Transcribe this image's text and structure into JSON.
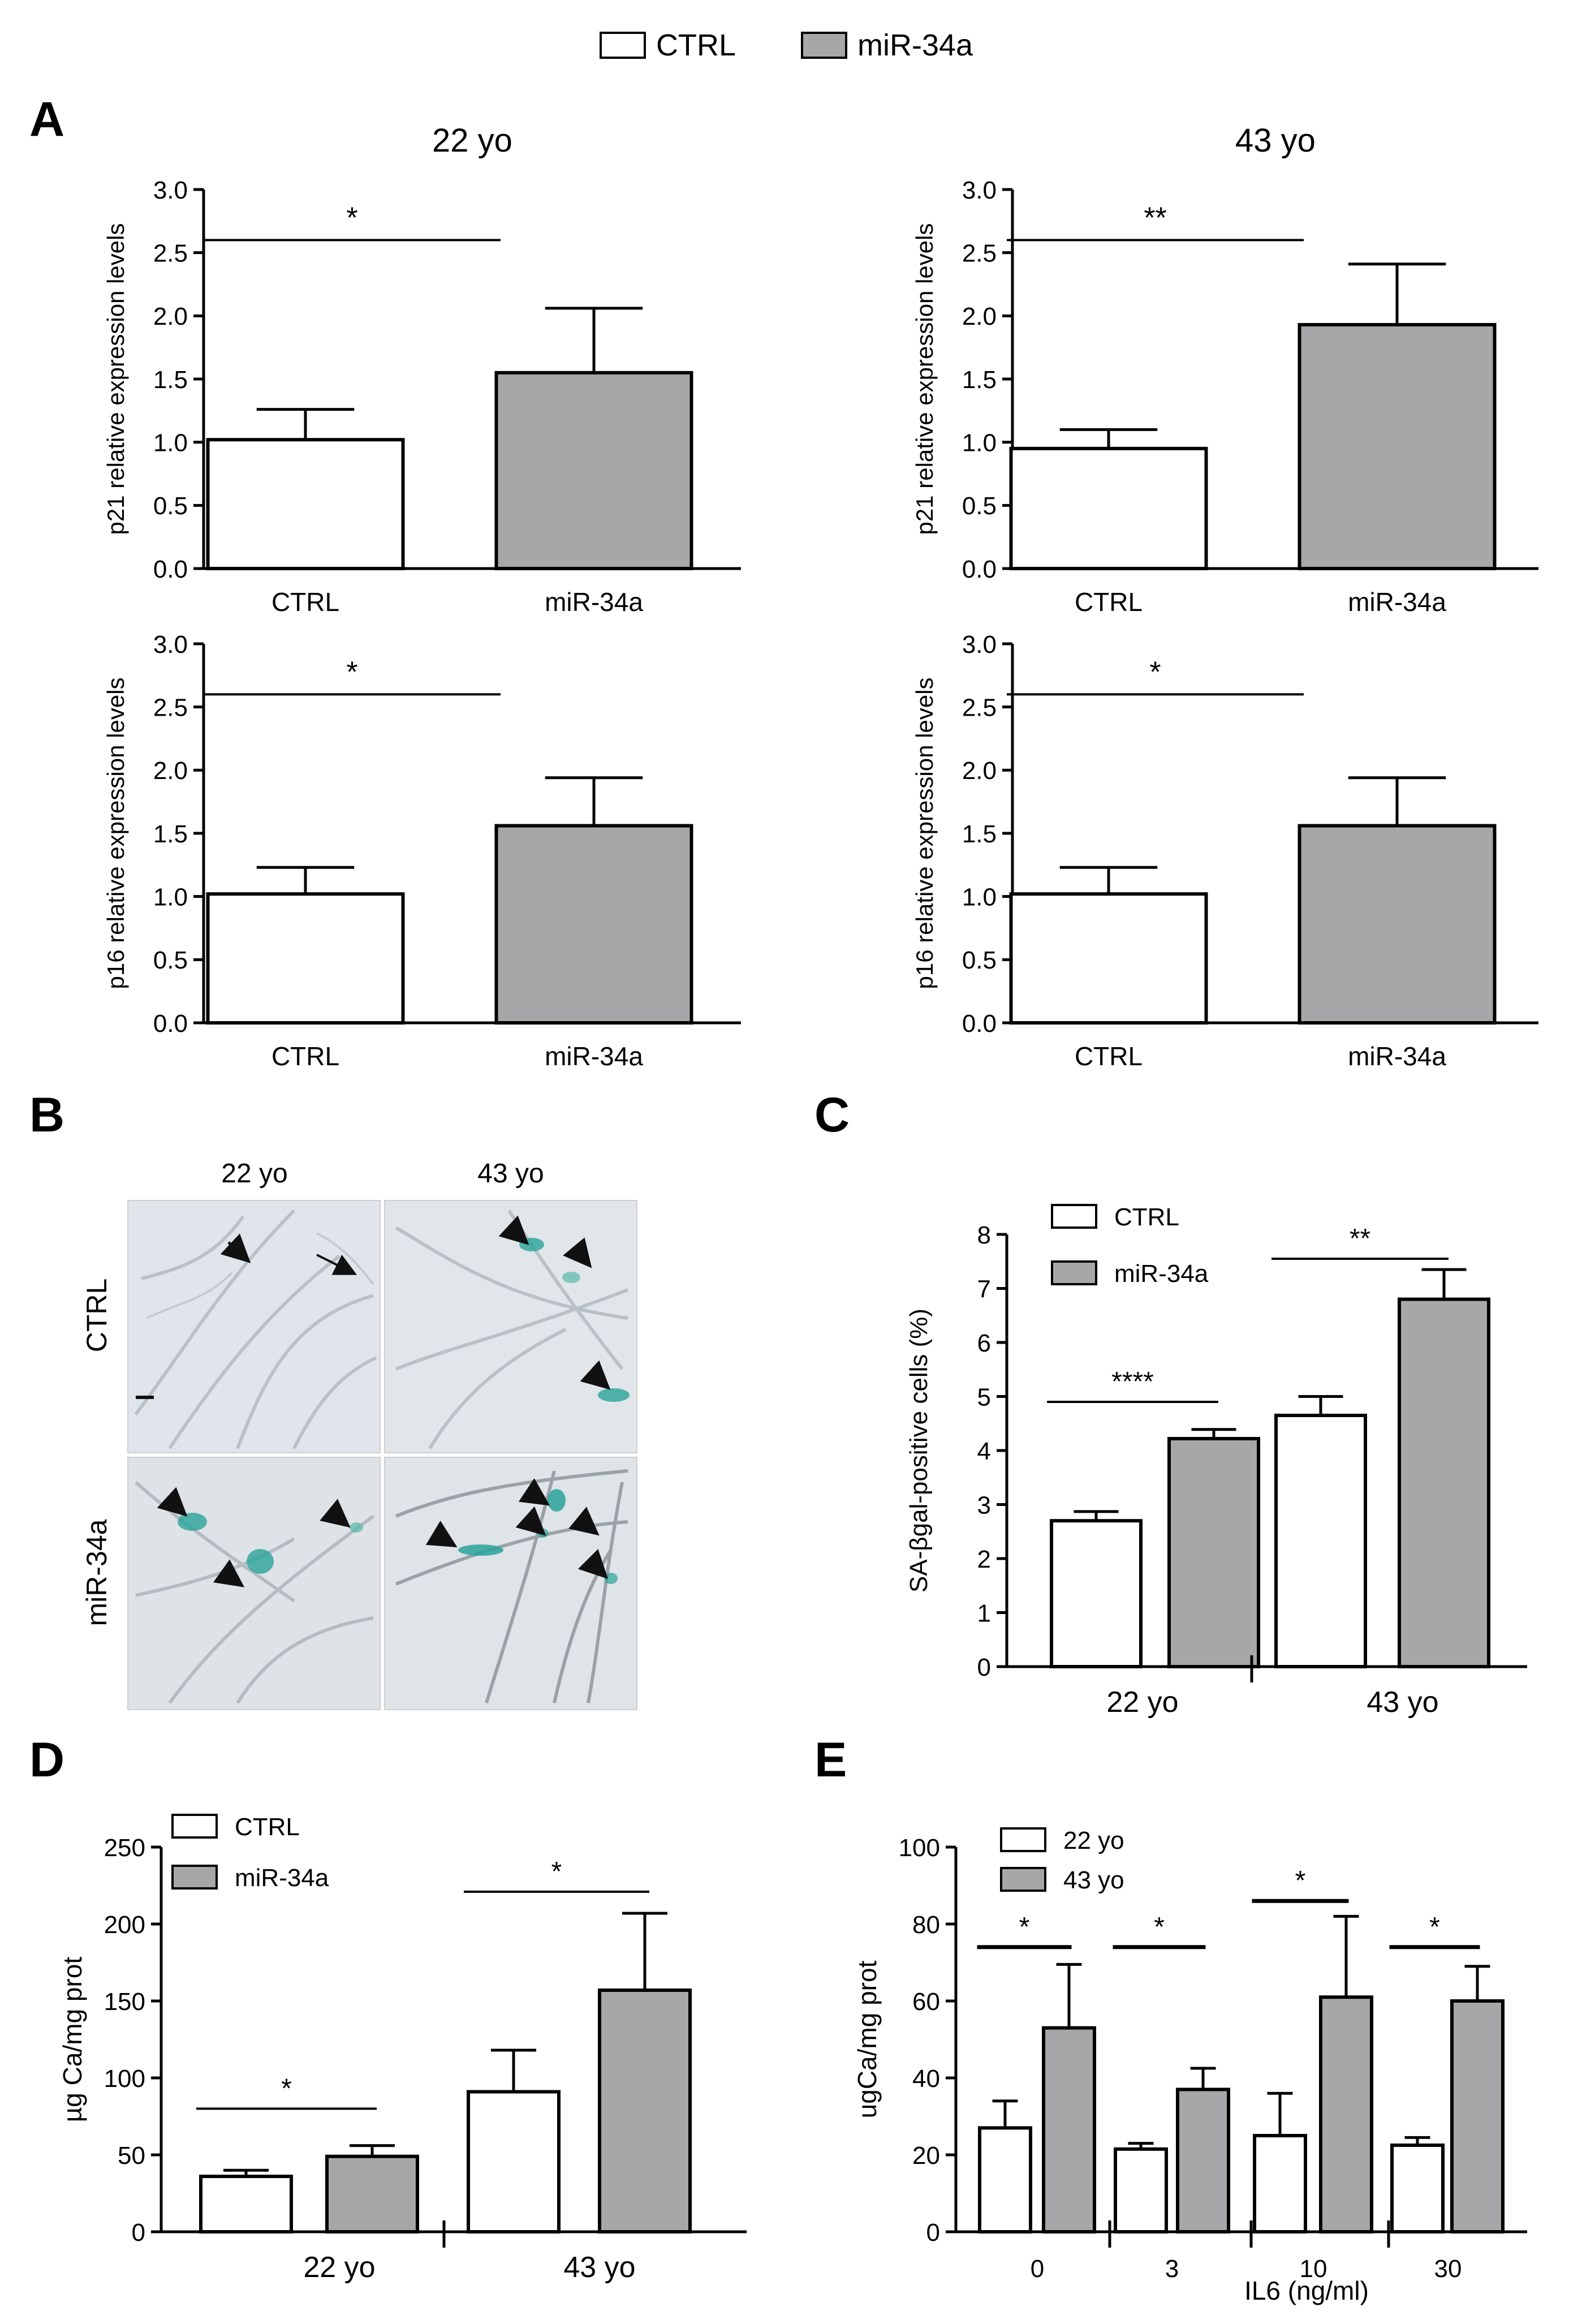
{
  "legend_top": {
    "items": [
      {
        "label": "CTRL",
        "color": "#ffffff"
      },
      {
        "label": "miR-34a",
        "color": "#a7a7aa"
      }
    ]
  },
  "panel_letters": [
    "A",
    "B",
    "C",
    "D",
    "E"
  ],
  "panel_b": {
    "col_labels": [
      "22 yo",
      "43 yo"
    ],
    "row_labels": [
      "CTRL",
      "miR-34a"
    ],
    "stain_color": "#2aa39a",
    "background_color": "#dfe5ea"
  },
  "chart_data": [
    {
      "id": "A1",
      "type": "bar",
      "title": "22 yo",
      "ylabel": "p21 relative expression levels",
      "ylim": [
        0,
        3.0
      ],
      "yticks": [
        "0.0",
        "0.5",
        "1.0",
        "1.5",
        "2.0",
        "2.5",
        "3.0"
      ],
      "categories": [
        "CTRL",
        "miR-34a"
      ],
      "values": [
        1.02,
        1.55
      ],
      "errors": [
        0.24,
        0.51
      ],
      "colors": [
        "#ffffff",
        "#a7a7aa"
      ],
      "significance": [
        {
          "from": 0,
          "to": 1,
          "label": "*",
          "y": 2.6
        }
      ]
    },
    {
      "id": "A2",
      "type": "bar",
      "title": "43 yo",
      "ylabel": "p21 relative expression levels",
      "ylim": [
        0,
        3.0
      ],
      "yticks": [
        "0.0",
        "0.5",
        "1.0",
        "1.5",
        "2.0",
        "2.5",
        "3.0"
      ],
      "categories": [
        "CTRL",
        "miR-34a"
      ],
      "values": [
        0.95,
        1.93
      ],
      "errors": [
        0.15,
        0.48
      ],
      "colors": [
        "#ffffff",
        "#a7a7aa"
      ],
      "significance": [
        {
          "from": 0,
          "to": 1,
          "label": "**",
          "y": 2.6
        }
      ]
    },
    {
      "id": "A3",
      "type": "bar",
      "title": "",
      "ylabel": "p16 relative expression levels",
      "ylim": [
        0,
        3.0
      ],
      "yticks": [
        "0.0",
        "0.5",
        "1.0",
        "1.5",
        "2.0",
        "2.5",
        "3.0"
      ],
      "categories": [
        "CTRL",
        "miR-34a"
      ],
      "values": [
        1.02,
        1.56
      ],
      "errors": [
        0.21,
        0.38
      ],
      "colors": [
        "#ffffff",
        "#a7a7aa"
      ],
      "significance": [
        {
          "from": 0,
          "to": 1,
          "label": "*",
          "y": 2.6
        }
      ]
    },
    {
      "id": "A4",
      "type": "bar",
      "title": "",
      "ylabel": "p16 relative expression levels",
      "ylim": [
        0,
        3.0
      ],
      "yticks": [
        "0.0",
        "0.5",
        "1.0",
        "1.5",
        "2.0",
        "2.5",
        "3.0"
      ],
      "categories": [
        "CTRL",
        "miR-34a"
      ],
      "values": [
        1.02,
        1.56
      ],
      "errors": [
        0.21,
        0.38
      ],
      "colors": [
        "#ffffff",
        "#a7a7aa"
      ],
      "significance": [
        {
          "from": 0,
          "to": 1,
          "label": "*",
          "y": 2.6
        }
      ]
    },
    {
      "id": "C",
      "type": "bar",
      "title": "",
      "ylabel": "SA-βgal-positive cells (%)",
      "ylim": [
        0,
        8
      ],
      "yticks": [
        "0",
        "1",
        "2",
        "3",
        "4",
        "5",
        "6",
        "7",
        "8"
      ],
      "groups": [
        "22 yo",
        "43 yo"
      ],
      "series": [
        {
          "name": "CTRL",
          "color": "#ffffff",
          "values": [
            2.7,
            4.65
          ],
          "errors": [
            0.17,
            0.35
          ]
        },
        {
          "name": "miR-34a",
          "color": "#a7a7aa",
          "values": [
            4.22,
            6.8
          ],
          "errors": [
            0.17,
            0.55
          ]
        }
      ],
      "legend": "top-left",
      "significance": [
        {
          "group": 0,
          "label": "****",
          "y": 4.9
        },
        {
          "group": 1,
          "label": "**",
          "y": 7.55
        }
      ]
    },
    {
      "id": "D",
      "type": "bar",
      "title": "",
      "ylabel": "µg Ca/mg prot",
      "ylim": [
        0,
        250
      ],
      "yticks": [
        "0",
        "50",
        "100",
        "150",
        "200",
        "250"
      ],
      "groups": [
        "22 yo",
        "43 yo"
      ],
      "series": [
        {
          "name": "CTRL",
          "color": "#ffffff",
          "values": [
            36,
            91
          ],
          "errors": [
            4,
            27
          ]
        },
        {
          "name": "miR-34a",
          "color": "#a7a7aa",
          "values": [
            49,
            157
          ],
          "errors": [
            7,
            50
          ]
        }
      ],
      "legend": "top-left",
      "significance": [
        {
          "group": 0,
          "label": "*",
          "y": 80
        },
        {
          "group": 1,
          "label": "*",
          "y": 221
        }
      ]
    },
    {
      "id": "E",
      "type": "bar",
      "title": "",
      "ylabel": "ugCa/mg prot",
      "xlabel": "IL6 (ng/ml)",
      "ylim": [
        0,
        100
      ],
      "yticks": [
        "0",
        "20",
        "40",
        "60",
        "80",
        "100"
      ],
      "groups": [
        "0",
        "3",
        "10",
        "30"
      ],
      "series": [
        {
          "name": "22 yo",
          "color": "#ffffff",
          "values": [
            27,
            21.5,
            25,
            22.5
          ],
          "errors": [
            7,
            1.5,
            11,
            2
          ]
        },
        {
          "name": "43 yo",
          "color": "#a7a7aa",
          "values": [
            53,
            37,
            61,
            60
          ],
          "errors": [
            16.5,
            5.5,
            21,
            9
          ]
        }
      ],
      "legend": "top-left",
      "significance": [
        {
          "group": 0,
          "label": "*",
          "y": 74
        },
        {
          "group": 1,
          "label": "*",
          "y": 74
        },
        {
          "group": 2,
          "label": "*",
          "y": 86
        },
        {
          "group": 3,
          "label": "*",
          "y": 74
        }
      ]
    }
  ]
}
